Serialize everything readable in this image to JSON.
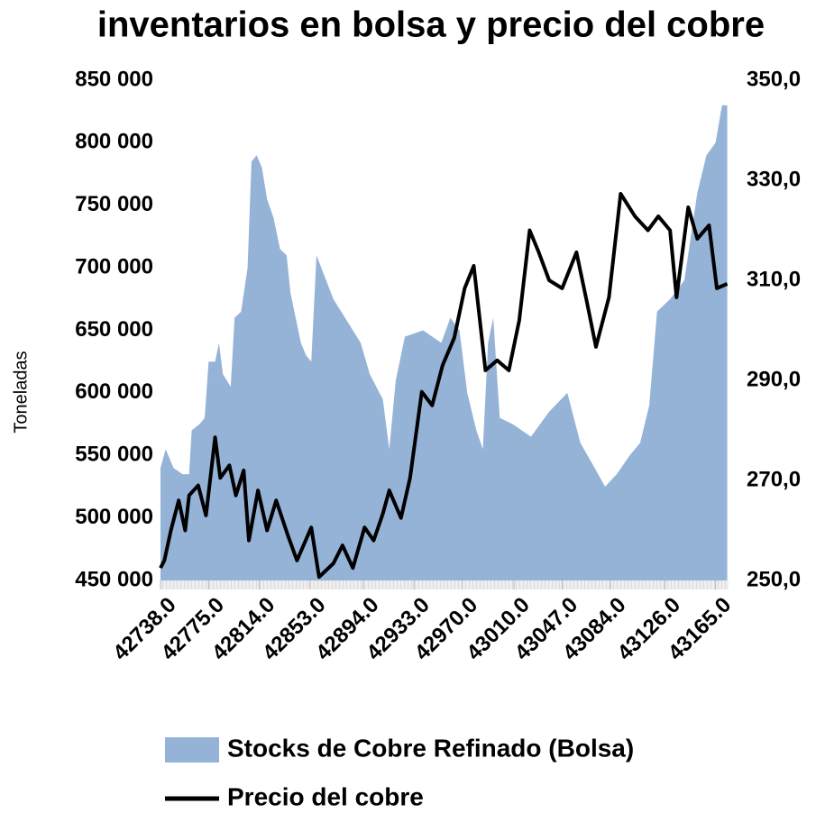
{
  "chart_data": {
    "type": "area-line",
    "title": "inventarios en bolsa y precio del cobre",
    "ylabel": "Toneladas",
    "xlim": [
      42738,
      43175
    ],
    "xticks": [
      {
        "value": 42738,
        "label": "42738.0"
      },
      {
        "value": 42775,
        "label": "42775.0"
      },
      {
        "value": 42814,
        "label": "42814.0"
      },
      {
        "value": 42853,
        "label": "42853.0"
      },
      {
        "value": 42894,
        "label": "42894.0"
      },
      {
        "value": 42933,
        "label": "42933.0"
      },
      {
        "value": 42970,
        "label": "42970.0"
      },
      {
        "value": 43010,
        "label": "43010.0"
      },
      {
        "value": 43047,
        "label": "43047.0"
      },
      {
        "value": 43084,
        "label": "43084.0"
      },
      {
        "value": 43126,
        "label": "43126.0"
      },
      {
        "value": 43165,
        "label": "43165.0"
      }
    ],
    "ylim": [
      450000,
      850000
    ],
    "yticks": [
      {
        "value": 450000,
        "label": "450 000"
      },
      {
        "value": 500000,
        "label": "500 000"
      },
      {
        "value": 550000,
        "label": "550 000"
      },
      {
        "value": 600000,
        "label": "600 000"
      },
      {
        "value": 650000,
        "label": "650 000"
      },
      {
        "value": 700000,
        "label": "700 000"
      },
      {
        "value": 750000,
        "label": "750 000"
      },
      {
        "value": 800000,
        "label": "800 000"
      },
      {
        "value": 850000,
        "label": "850 000"
      }
    ],
    "y2lim": [
      250,
      350
    ],
    "y2ticks": [
      {
        "value": 250,
        "label": "250,0"
      },
      {
        "value": 270,
        "label": "270,0"
      },
      {
        "value": 290,
        "label": "290,0"
      },
      {
        "value": 310,
        "label": "310,0"
      },
      {
        "value": 330,
        "label": "330,0"
      },
      {
        "value": 350,
        "label": "350,0"
      }
    ],
    "series": [
      {
        "name": "Stocks de Cobre Refinado (Bolsa)",
        "kind": "area",
        "color": "#95b3d7",
        "x": [
          42738,
          42742,
          42748,
          42755,
          42760,
          42762,
          42768,
          42772,
          42775,
          42780,
          42783,
          42786,
          42792,
          42795,
          42800,
          42805,
          42808,
          42812,
          42816,
          42820,
          42825,
          42830,
          42835,
          42838,
          42842,
          42846,
          42850,
          42854,
          42858,
          42871,
          42892,
          42899,
          42909,
          42914,
          42919,
          42926,
          42940,
          42954,
          42961,
          42968,
          42974,
          42981,
          42986,
          42990,
          42994,
          42999,
          43009,
          43023,
          43037,
          43051,
          43061,
          43072,
          43080,
          43089,
          43099,
          43107,
          43114,
          43120,
          43130,
          43141,
          43151,
          43158,
          43165,
          43170,
          43174
        ],
        "values": [
          540000,
          555000,
          540000,
          535000,
          535000,
          570000,
          575000,
          580000,
          625000,
          625000,
          640000,
          615000,
          605000,
          660000,
          665000,
          700000,
          785000,
          790000,
          780000,
          755000,
          740000,
          715000,
          710000,
          680000,
          660000,
          640000,
          630000,
          625000,
          710000,
          675000,
          640000,
          615000,
          595000,
          555000,
          610000,
          645000,
          650000,
          640000,
          660000,
          650000,
          600000,
          570000,
          555000,
          640000,
          660000,
          580000,
          575000,
          565000,
          585000,
          600000,
          560000,
          540000,
          525000,
          535000,
          550000,
          560000,
          590000,
          665000,
          675000,
          690000,
          760000,
          790000,
          800000,
          830000,
          830000
        ]
      },
      {
        "name": "Precio del cobre",
        "kind": "line",
        "axis": "y2",
        "color": "#000000",
        "x": [
          42738,
          42741,
          42746,
          42752,
          42757,
          42760,
          42767,
          42773,
          42780,
          42784,
          42791,
          42796,
          42802,
          42806,
          42813,
          42820,
          42827,
          42836,
          42843,
          42854,
          42860,
          42871,
          42878,
          42886,
          42895,
          42902,
          42909,
          42914,
          42923,
          42930,
          42939,
          42947,
          42955,
          42964,
          42972,
          42979,
          42988,
          42997,
          43006,
          43014,
          43022,
          43029,
          43037,
          43047,
          43058,
          43066,
          43073,
          43083,
          43092,
          43103,
          43113,
          43121,
          43130,
          43135,
          43144,
          43151,
          43160,
          43166,
          43174
        ],
        "values": [
          252.5,
          254,
          260,
          266,
          260,
          267,
          269,
          263,
          278.6,
          270.5,
          273,
          267,
          272,
          258,
          268,
          260,
          266,
          259,
          254,
          260.6,
          250.7,
          253.4,
          257,
          252.5,
          260.6,
          258,
          263.3,
          268,
          262.5,
          270.5,
          287.7,
          285,
          293,
          298.5,
          308.4,
          312.9,
          292,
          294,
          292,
          302,
          320,
          315.6,
          310,
          308.4,
          315.6,
          305.7,
          296.7,
          306.6,
          327.3,
          322.8,
          320,
          322.8,
          320,
          306.6,
          324.6,
          318.3,
          321,
          308.4,
          309.3
        ]
      }
    ]
  }
}
